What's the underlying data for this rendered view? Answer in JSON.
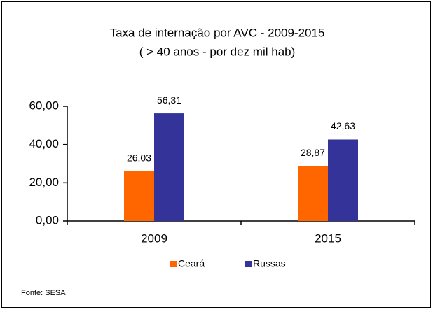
{
  "chart_data": {
    "type": "bar",
    "title": "Taxa de internação por AVC - 2009-2015",
    "subtitle": "( > 40 anos - por dez mil hab)",
    "categories": [
      "2009",
      "2015"
    ],
    "series": [
      {
        "name": "Ceará",
        "color": "#ff6600",
        "values": [
          26.03,
          28.87
        ],
        "value_labels": [
          "26,03",
          "28,87"
        ]
      },
      {
        "name": "Russas",
        "color": "#333399",
        "values": [
          56.31,
          42.63
        ],
        "value_labels": [
          "56,31",
          "42,63"
        ]
      }
    ],
    "ylim": [
      0,
      60
    ],
    "yticks": [
      {
        "value": 0,
        "label": "0,00"
      },
      {
        "value": 20,
        "label": "20,00"
      },
      {
        "value": 40,
        "label": "40,00"
      },
      {
        "value": 60,
        "label": "60,00"
      }
    ],
    "grid": false,
    "legend": "bottom",
    "source": "Fonte: SESA"
  }
}
